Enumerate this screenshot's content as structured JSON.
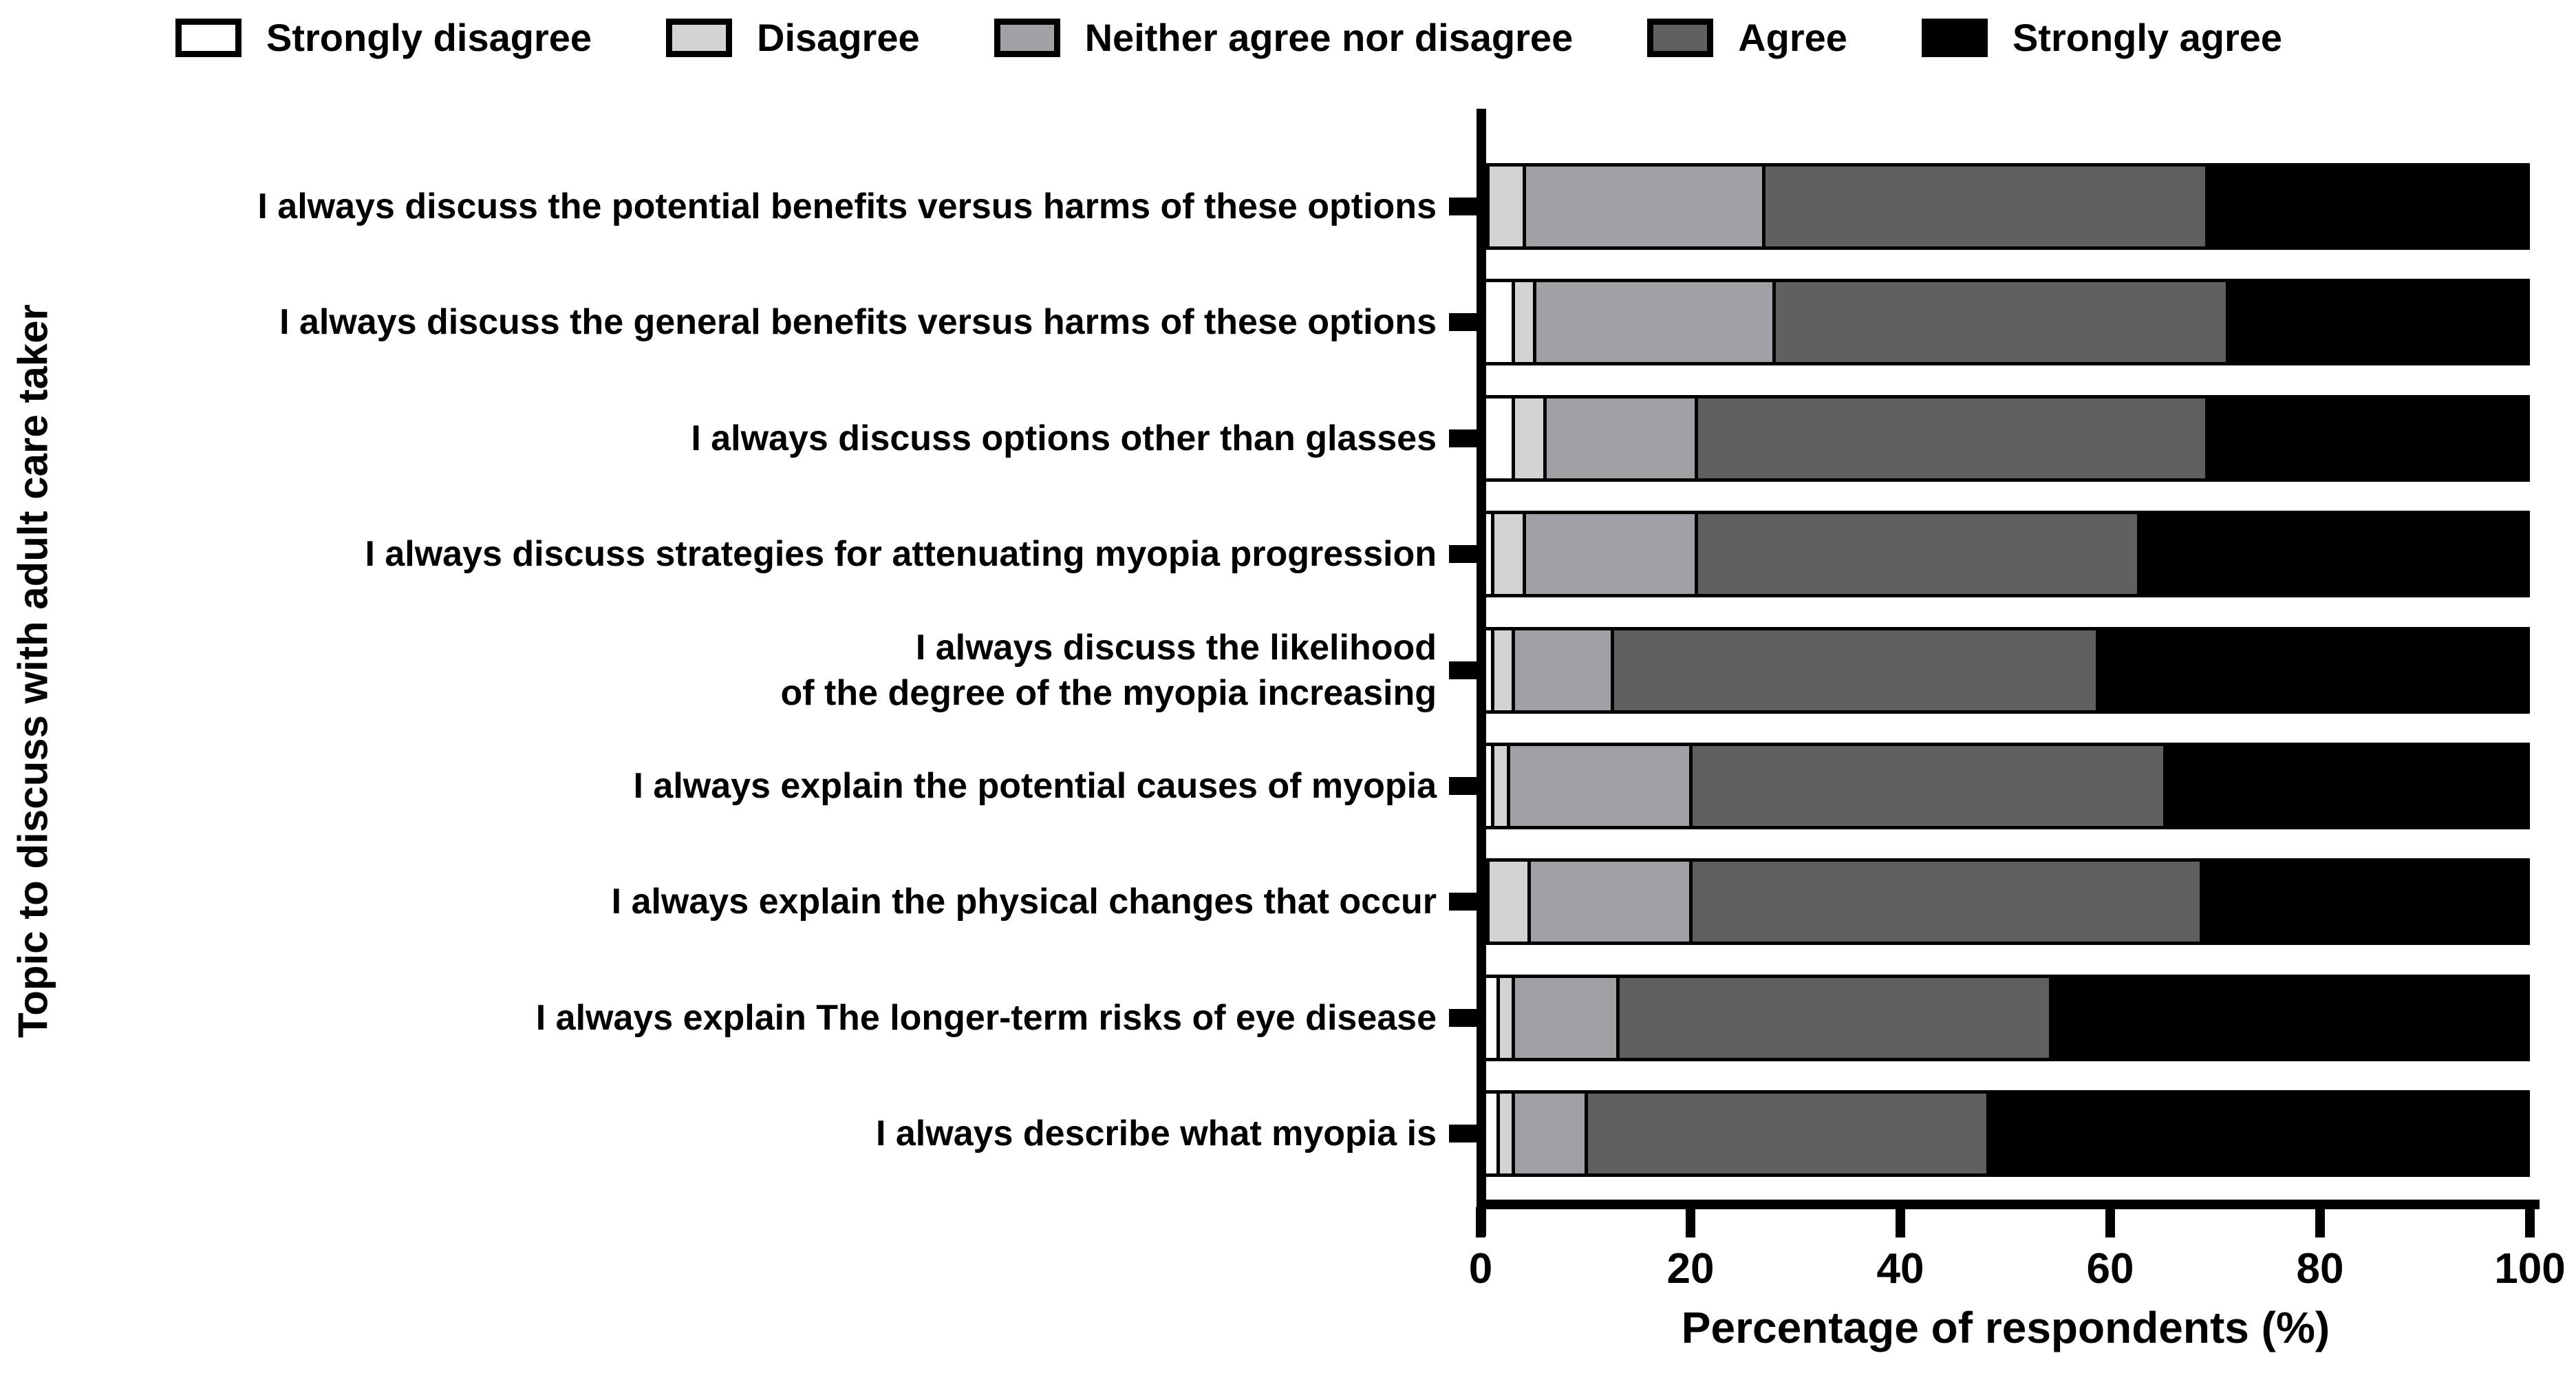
{
  "chart_data": {
    "type": "bar",
    "stacked": true,
    "orientation": "horizontal",
    "xlabel": "Percentage of respondents (%)",
    "ylabel": "Topic to discuss with adult care taker",
    "xlim": [
      0,
      100
    ],
    "x_ticks": [
      0,
      20,
      40,
      60,
      80,
      100
    ],
    "grid": false,
    "legend_position": "top",
    "categories": [
      "I always discuss the potential benefits versus harms of these options",
      "I always discuss the general benefits versus harms of these options",
      "I always discuss options other than glasses",
      "I always discuss strategies for attenuating myopia progression",
      "I always discuss the likelihood\nof the degree of the myopia increasing",
      "I always explain the potential causes of myopia",
      "I always explain the physical changes that occur",
      "I always explain The longer-term risks of eye disease",
      "I always describe what myopia is"
    ],
    "series": [
      {
        "name": "Strongly disagree",
        "color": "#ffffff",
        "values": [
          0.5,
          3,
          3,
          1,
          1,
          1,
          0.5,
          1.5,
          1.5
        ]
      },
      {
        "name": "Disagree",
        "color": "#d3d3d3",
        "values": [
          3.5,
          2,
          3,
          3,
          2,
          1.5,
          4,
          1.5,
          1.5
        ]
      },
      {
        "name": "Neither agree nor disagree",
        "color": "#a1a1a5",
        "values": [
          23,
          23,
          14.5,
          16.5,
          9.5,
          17.5,
          15.5,
          10,
          7
        ]
      },
      {
        "name": "Agree",
        "color": "#5f5f5f",
        "values": [
          42.5,
          43.5,
          49,
          42.5,
          46.5,
          45.5,
          49,
          41.5,
          38.5
        ]
      },
      {
        "name": "Strongly agree",
        "color": "#000000",
        "values": [
          30.5,
          28.5,
          30.5,
          37,
          41,
          34.5,
          31,
          45.5,
          51.5
        ]
      }
    ]
  }
}
